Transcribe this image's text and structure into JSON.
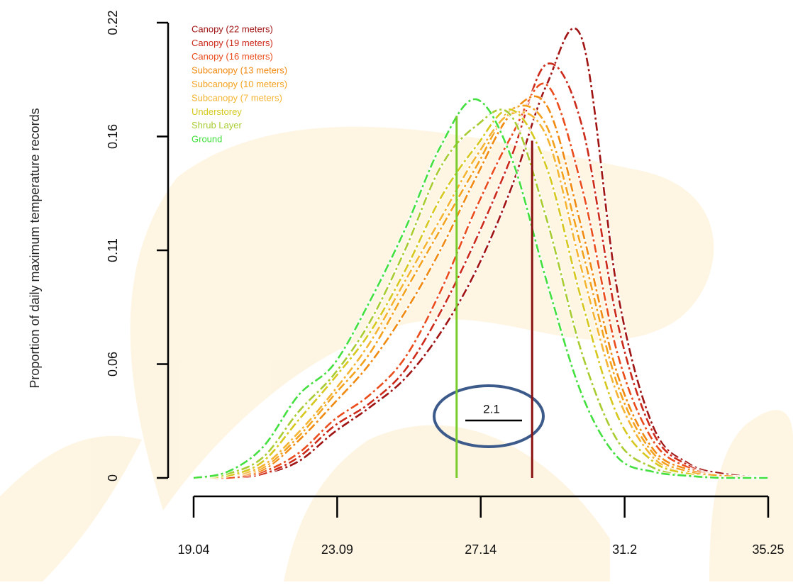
{
  "chart_data": {
    "type": "line",
    "ylabel": "Proportion of daily maximum temperature records",
    "x": [
      19.04,
      20,
      21,
      22,
      23,
      24,
      25,
      26,
      27,
      28,
      29,
      30,
      31,
      32,
      33,
      34,
      35.25
    ],
    "xlim": [
      19.04,
      35.25
    ],
    "xticks": [
      19.04,
      23.09,
      27.14,
      31.2,
      35.25
    ],
    "ylim": [
      0,
      0.22
    ],
    "yticks": [
      0,
      {
        "value": 0.055,
        "label": "0.06"
      },
      0.11,
      {
        "value": 0.165,
        "label": "0.16"
      },
      0.22
    ],
    "legend": "top-left",
    "series": [
      {
        "name": "Canopy (22 meters)",
        "color": "#a01414",
        "values": [
          0,
          0,
          0.002,
          0.008,
          0.022,
          0.034,
          0.048,
          0.07,
          0.1,
          0.14,
          0.19,
          0.212,
          0.09,
          0.025,
          0.007,
          0.002,
          0
        ]
      },
      {
        "name": "Canopy (19 meters)",
        "color": "#cc2a1a",
        "values": [
          0,
          0,
          0.002,
          0.01,
          0.025,
          0.036,
          0.052,
          0.08,
          0.115,
          0.155,
          0.2,
          0.17,
          0.075,
          0.022,
          0.006,
          0.001,
          0
        ]
      },
      {
        "name": "Canopy (16 meters)",
        "color": "#ea4c1c",
        "values": [
          0,
          0,
          0.003,
          0.012,
          0.028,
          0.04,
          0.058,
          0.09,
          0.13,
          0.165,
          0.19,
          0.14,
          0.06,
          0.018,
          0.005,
          0.001,
          0
        ]
      },
      {
        "name": "Subcanopy (13 meters)",
        "color": "#f08a10",
        "values": [
          0,
          0.001,
          0.004,
          0.018,
          0.036,
          0.055,
          0.08,
          0.11,
          0.145,
          0.176,
          0.18,
          0.12,
          0.05,
          0.014,
          0.004,
          0.001,
          0
        ]
      },
      {
        "name": "Subcanopy (10 meters)",
        "color": "#f3a21e",
        "values": [
          0,
          0.001,
          0.005,
          0.02,
          0.04,
          0.06,
          0.09,
          0.12,
          0.15,
          0.178,
          0.17,
          0.11,
          0.045,
          0.012,
          0.003,
          0.001,
          0
        ]
      },
      {
        "name": "Subcanopy (7 meters)",
        "color": "#f5b432",
        "values": [
          0,
          0.001,
          0.006,
          0.022,
          0.042,
          0.065,
          0.095,
          0.125,
          0.155,
          0.176,
          0.165,
          0.1,
          0.04,
          0.01,
          0.002,
          0,
          0
        ]
      },
      {
        "name": "Understorey",
        "color": "#d6c81e",
        "values": [
          0,
          0.001,
          0.008,
          0.028,
          0.048,
          0.07,
          0.1,
          0.135,
          0.16,
          0.178,
          0.15,
          0.085,
          0.03,
          0.008,
          0.002,
          0,
          0
        ]
      },
      {
        "name": "Shrub Layer",
        "color": "#a8cc32",
        "values": [
          0,
          0.002,
          0.01,
          0.032,
          0.05,
          0.075,
          0.11,
          0.15,
          0.17,
          0.175,
          0.125,
          0.06,
          0.018,
          0.005,
          0.001,
          0,
          0
        ]
      },
      {
        "name": "Ground",
        "color": "#44e040",
        "values": [
          0,
          0.003,
          0.015,
          0.04,
          0.055,
          0.085,
          0.12,
          0.16,
          0.183,
          0.155,
          0.095,
          0.04,
          0.01,
          0.003,
          0.001,
          0,
          0
        ]
      }
    ],
    "vlines": [
      {
        "x": 26.46,
        "y": 0.175,
        "color": "#78cc2c"
      },
      {
        "x": 28.59,
        "y": 0.163,
        "color": "#8b1010"
      }
    ],
    "annotation": "2.1"
  }
}
